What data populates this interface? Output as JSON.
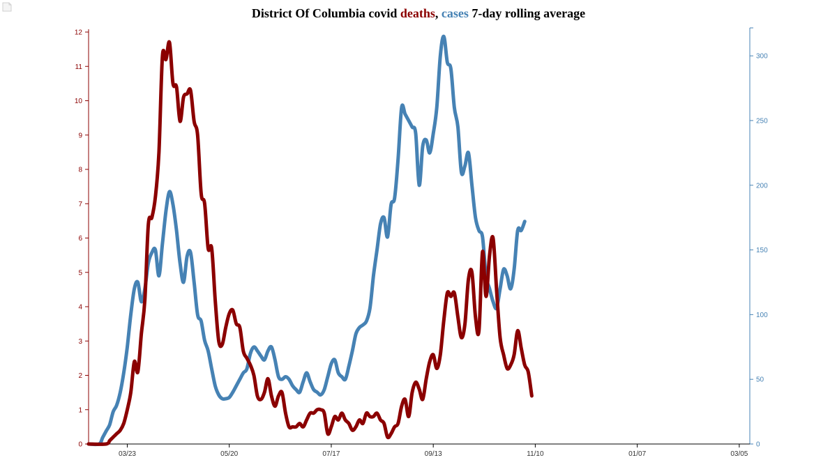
{
  "title": {
    "prefix": "District Of Columbia covid ",
    "series1": "deaths",
    "sep": ", ",
    "series2": "cases",
    "suffix": " 7-day rolling average"
  },
  "colors": {
    "deaths": "#8b0000",
    "cases": "#4682b4",
    "axis_text": "#333333"
  },
  "chart_data": {
    "type": "line",
    "x_tick_labels": [
      "03/23",
      "05/20",
      "07/17",
      "09/13",
      "11/10",
      "01/07",
      "03/05"
    ],
    "x_tick_days": [
      22,
      80,
      138,
      196,
      254,
      312,
      370
    ],
    "x_range": [
      0,
      376
    ],
    "left_axis": {
      "series": "deaths",
      "ylim": [
        0,
        12
      ],
      "ticks": [
        0,
        1,
        2,
        3,
        4,
        5,
        6,
        7,
        8,
        9,
        10,
        11,
        12
      ]
    },
    "right_axis": {
      "series": "cases",
      "ylim": [
        0,
        320
      ],
      "ticks": [
        0,
        50,
        100,
        150,
        200,
        250,
        300
      ]
    },
    "series": [
      {
        "key": "deaths",
        "points": [
          [
            0,
            0
          ],
          [
            10,
            0
          ],
          [
            12,
            0.1
          ],
          [
            14,
            0.2
          ],
          [
            16,
            0.3
          ],
          [
            18,
            0.4
          ],
          [
            20,
            0.6
          ],
          [
            22,
            1
          ],
          [
            24,
            1.5
          ],
          [
            26,
            2.4
          ],
          [
            28,
            2.1
          ],
          [
            30,
            3.2
          ],
          [
            32,
            4.2
          ],
          [
            34,
            6.4
          ],
          [
            36,
            6.6
          ],
          [
            38,
            7.2
          ],
          [
            40,
            8.5
          ],
          [
            42,
            11.3
          ],
          [
            44,
            11.2
          ],
          [
            46,
            11.7
          ],
          [
            48,
            10.5
          ],
          [
            50,
            10.4
          ],
          [
            52,
            9.4
          ],
          [
            54,
            10.1
          ],
          [
            56,
            10.2
          ],
          [
            58,
            10.3
          ],
          [
            60,
            9.4
          ],
          [
            62,
            9
          ],
          [
            64,
            7.3
          ],
          [
            66,
            7
          ],
          [
            68,
            5.7
          ],
          [
            70,
            5.7
          ],
          [
            72,
            4.2
          ],
          [
            74,
            3
          ],
          [
            76,
            2.9
          ],
          [
            78,
            3.4
          ],
          [
            80,
            3.8
          ],
          [
            82,
            3.9
          ],
          [
            84,
            3.5
          ],
          [
            86,
            3.4
          ],
          [
            88,
            2.7
          ],
          [
            90,
            2.5
          ],
          [
            92,
            2.3
          ],
          [
            94,
            2
          ],
          [
            96,
            1.4
          ],
          [
            98,
            1.3
          ],
          [
            100,
            1.5
          ],
          [
            102,
            1.9
          ],
          [
            104,
            1.4
          ],
          [
            106,
            1.1
          ],
          [
            108,
            1.4
          ],
          [
            110,
            1.5
          ],
          [
            112,
            0.9
          ],
          [
            114,
            0.5
          ],
          [
            116,
            0.5
          ],
          [
            118,
            0.5
          ],
          [
            120,
            0.6
          ],
          [
            122,
            0.5
          ],
          [
            124,
            0.7
          ],
          [
            126,
            0.9
          ],
          [
            128,
            0.9
          ],
          [
            130,
            1
          ],
          [
            132,
            1
          ],
          [
            134,
            0.9
          ],
          [
            136,
            0.3
          ],
          [
            138,
            0.5
          ],
          [
            140,
            0.8
          ],
          [
            142,
            0.7
          ],
          [
            144,
            0.9
          ],
          [
            146,
            0.7
          ],
          [
            148,
            0.6
          ],
          [
            150,
            0.4
          ],
          [
            152,
            0.5
          ],
          [
            154,
            0.7
          ],
          [
            156,
            0.6
          ],
          [
            158,
            0.9
          ],
          [
            160,
            0.8
          ],
          [
            162,
            0.8
          ],
          [
            164,
            0.9
          ],
          [
            166,
            0.7
          ],
          [
            168,
            0.6
          ],
          [
            170,
            0.2
          ],
          [
            172,
            0.3
          ],
          [
            174,
            0.5
          ],
          [
            176,
            0.6
          ],
          [
            178,
            1.1
          ],
          [
            180,
            1.3
          ],
          [
            182,
            0.8
          ],
          [
            184,
            1.5
          ],
          [
            186,
            1.8
          ],
          [
            188,
            1.6
          ],
          [
            190,
            1.3
          ],
          [
            192,
            1.9
          ],
          [
            194,
            2.4
          ],
          [
            196,
            2.6
          ],
          [
            198,
            2.2
          ],
          [
            200,
            2.6
          ],
          [
            202,
            3.6
          ],
          [
            204,
            4.4
          ],
          [
            206,
            4.3
          ],
          [
            208,
            4.4
          ],
          [
            210,
            3.7
          ],
          [
            212,
            3.1
          ],
          [
            214,
            3.5
          ],
          [
            216,
            4.8
          ],
          [
            218,
            5
          ],
          [
            220,
            3.7
          ],
          [
            222,
            3.3
          ],
          [
            224,
            5.6
          ],
          [
            226,
            4.3
          ],
          [
            228,
            5.5
          ],
          [
            230,
            6
          ],
          [
            232,
            4.5
          ],
          [
            234,
            3.1
          ],
          [
            236,
            2.6
          ],
          [
            238,
            2.2
          ],
          [
            240,
            2.3
          ],
          [
            242,
            2.6
          ],
          [
            244,
            3.3
          ],
          [
            246,
            2.8
          ],
          [
            248,
            2.3
          ],
          [
            250,
            2.1
          ],
          [
            252,
            1.4
          ]
        ]
      },
      {
        "key": "cases",
        "points": [
          [
            0,
            0
          ],
          [
            6,
            0
          ],
          [
            8,
            5
          ],
          [
            10,
            10
          ],
          [
            12,
            15
          ],
          [
            14,
            25
          ],
          [
            16,
            30
          ],
          [
            18,
            40
          ],
          [
            20,
            55
          ],
          [
            22,
            75
          ],
          [
            24,
            100
          ],
          [
            26,
            120
          ],
          [
            28,
            125
          ],
          [
            30,
            110
          ],
          [
            32,
            120
          ],
          [
            34,
            140
          ],
          [
            36,
            148
          ],
          [
            38,
            150
          ],
          [
            40,
            130
          ],
          [
            42,
            155
          ],
          [
            44,
            180
          ],
          [
            46,
            195
          ],
          [
            48,
            185
          ],
          [
            50,
            165
          ],
          [
            52,
            140
          ],
          [
            54,
            125
          ],
          [
            56,
            145
          ],
          [
            58,
            148
          ],
          [
            60,
            125
          ],
          [
            62,
            100
          ],
          [
            64,
            95
          ],
          [
            66,
            80
          ],
          [
            68,
            72
          ],
          [
            70,
            58
          ],
          [
            72,
            45
          ],
          [
            74,
            38
          ],
          [
            76,
            35
          ],
          [
            78,
            35
          ],
          [
            80,
            36
          ],
          [
            82,
            40
          ],
          [
            84,
            45
          ],
          [
            86,
            50
          ],
          [
            88,
            55
          ],
          [
            90,
            58
          ],
          [
            92,
            70
          ],
          [
            94,
            75
          ],
          [
            96,
            72
          ],
          [
            98,
            68
          ],
          [
            100,
            65
          ],
          [
            102,
            72
          ],
          [
            104,
            75
          ],
          [
            106,
            65
          ],
          [
            108,
            52
          ],
          [
            110,
            50
          ],
          [
            112,
            52
          ],
          [
            114,
            50
          ],
          [
            116,
            45
          ],
          [
            118,
            42
          ],
          [
            120,
            40
          ],
          [
            122,
            48
          ],
          [
            124,
            55
          ],
          [
            126,
            48
          ],
          [
            128,
            42
          ],
          [
            130,
            40
          ],
          [
            132,
            38
          ],
          [
            134,
            42
          ],
          [
            136,
            52
          ],
          [
            138,
            62
          ],
          [
            140,
            65
          ],
          [
            142,
            55
          ],
          [
            144,
            52
          ],
          [
            146,
            50
          ],
          [
            148,
            60
          ],
          [
            150,
            72
          ],
          [
            152,
            85
          ],
          [
            154,
            90
          ],
          [
            156,
            92
          ],
          [
            158,
            95
          ],
          [
            160,
            105
          ],
          [
            162,
            130
          ],
          [
            164,
            150
          ],
          [
            166,
            170
          ],
          [
            168,
            175
          ],
          [
            170,
            160
          ],
          [
            172,
            185
          ],
          [
            174,
            190
          ],
          [
            176,
            220
          ],
          [
            178,
            260
          ],
          [
            180,
            255
          ],
          [
            182,
            250
          ],
          [
            184,
            245
          ],
          [
            186,
            240
          ],
          [
            188,
            200
          ],
          [
            190,
            230
          ],
          [
            192,
            235
          ],
          [
            194,
            225
          ],
          [
            196,
            240
          ],
          [
            198,
            260
          ],
          [
            200,
            300
          ],
          [
            202,
            315
          ],
          [
            204,
            295
          ],
          [
            206,
            290
          ],
          [
            208,
            260
          ],
          [
            210,
            245
          ],
          [
            212,
            210
          ],
          [
            214,
            215
          ],
          [
            216,
            225
          ],
          [
            218,
            200
          ],
          [
            220,
            175
          ],
          [
            222,
            165
          ],
          [
            224,
            160
          ],
          [
            226,
            130
          ],
          [
            228,
            120
          ],
          [
            230,
            110
          ],
          [
            232,
            105
          ],
          [
            234,
            120
          ],
          [
            236,
            135
          ],
          [
            238,
            130
          ],
          [
            240,
            120
          ],
          [
            242,
            135
          ],
          [
            244,
            165
          ],
          [
            246,
            165
          ],
          [
            248,
            172
          ]
        ]
      }
    ]
  }
}
